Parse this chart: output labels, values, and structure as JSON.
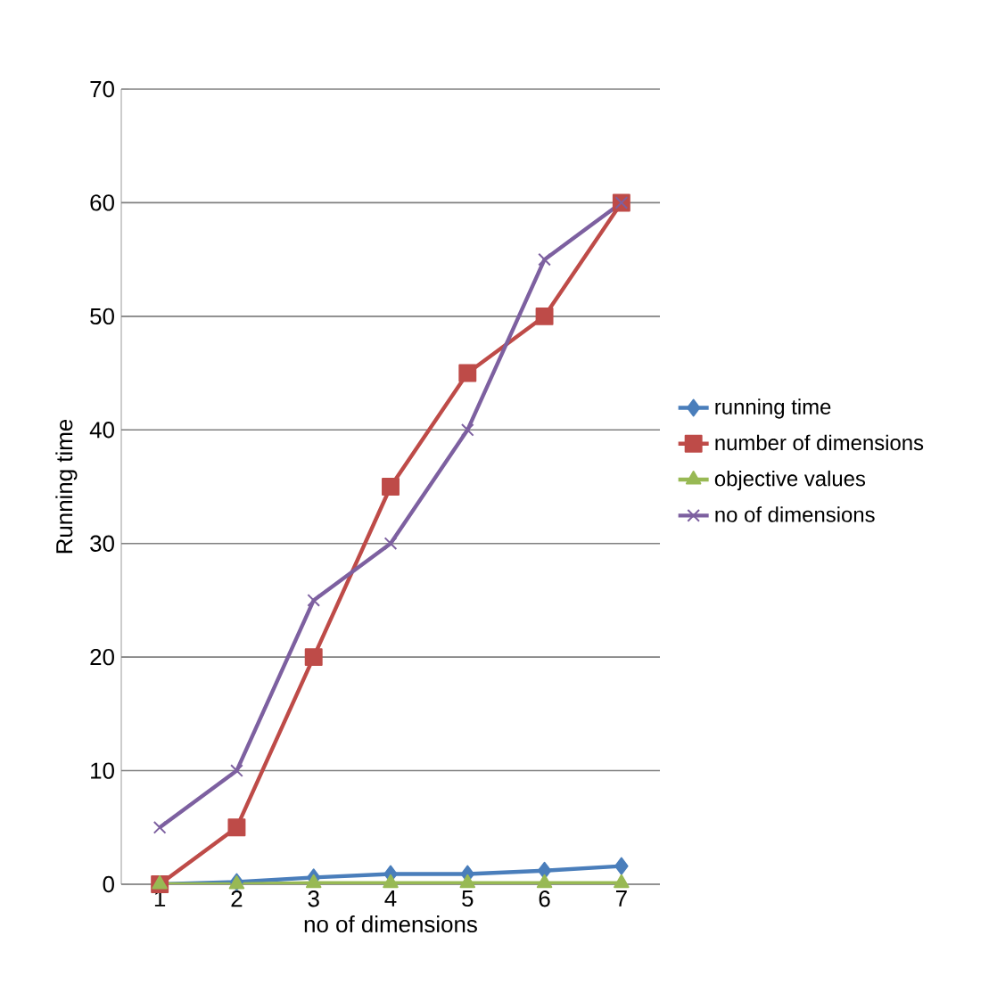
{
  "chart_data": {
    "type": "line",
    "xlabel": "no of dimensions",
    "ylabel": "Running time",
    "categories": [
      "1",
      "2",
      "3",
      "4",
      "5",
      "6",
      "7"
    ],
    "series": [
      {
        "name": "running time",
        "color": "#4a7ebb",
        "marker": "diamond",
        "values": [
          0,
          0.2,
          0.6,
          0.9,
          0.9,
          1.2,
          1.6
        ]
      },
      {
        "name": "number of dimensions",
        "color": "#be4b48",
        "marker": "square",
        "values": [
          0,
          5,
          20,
          35,
          45,
          50,
          60
        ]
      },
      {
        "name": "objective values",
        "color": "#98b954",
        "marker": "triangle",
        "values": [
          0,
          0,
          0.1,
          0.1,
          0.1,
          0.1,
          0.1
        ]
      },
      {
        "name": "no  of dimensions",
        "color": "#7d60a0",
        "marker": "cross",
        "values": [
          5,
          10,
          25,
          30,
          40,
          55,
          60
        ]
      }
    ],
    "ylim": [
      0,
      70
    ],
    "yticks": [
      0,
      10,
      20,
      30,
      40,
      50,
      60,
      70
    ],
    "grid": "y",
    "legend": "right",
    "line_style": "solid"
  }
}
